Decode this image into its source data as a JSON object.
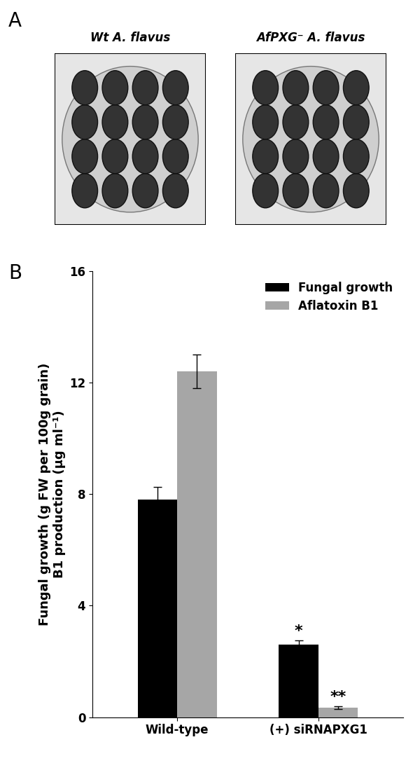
{
  "panel_labels": [
    "A",
    "B"
  ],
  "panel_a": {
    "images": [
      "Wt A. flavus",
      "AfPXG⁻ A. flavus"
    ]
  },
  "chart_data": {
    "type": "bar",
    "y_label": "Fungal growth (g FW per 100g grain)\nB1 production (µg ml⁻¹)",
    "categories": [
      "Wild-type",
      "(+) siRNAPXG1"
    ],
    "series": [
      {
        "name": "Fungal growth",
        "color": "#000000",
        "values": [
          7.8,
          2.6
        ],
        "errors": [
          0.45,
          0.15
        ]
      },
      {
        "name": "Aflatoxin B1",
        "color": "#a6a6a6",
        "values": [
          12.4,
          0.35
        ],
        "errors": [
          0.6,
          0.05
        ]
      }
    ],
    "annotations": [
      {
        "text": "*",
        "category": 1,
        "series": 0
      },
      {
        "text": "**",
        "category": 1,
        "series": 1
      }
    ],
    "ylim": [
      0,
      16
    ],
    "yticks": [
      0,
      4,
      8,
      12,
      16
    ],
    "legend": "upper right"
  }
}
